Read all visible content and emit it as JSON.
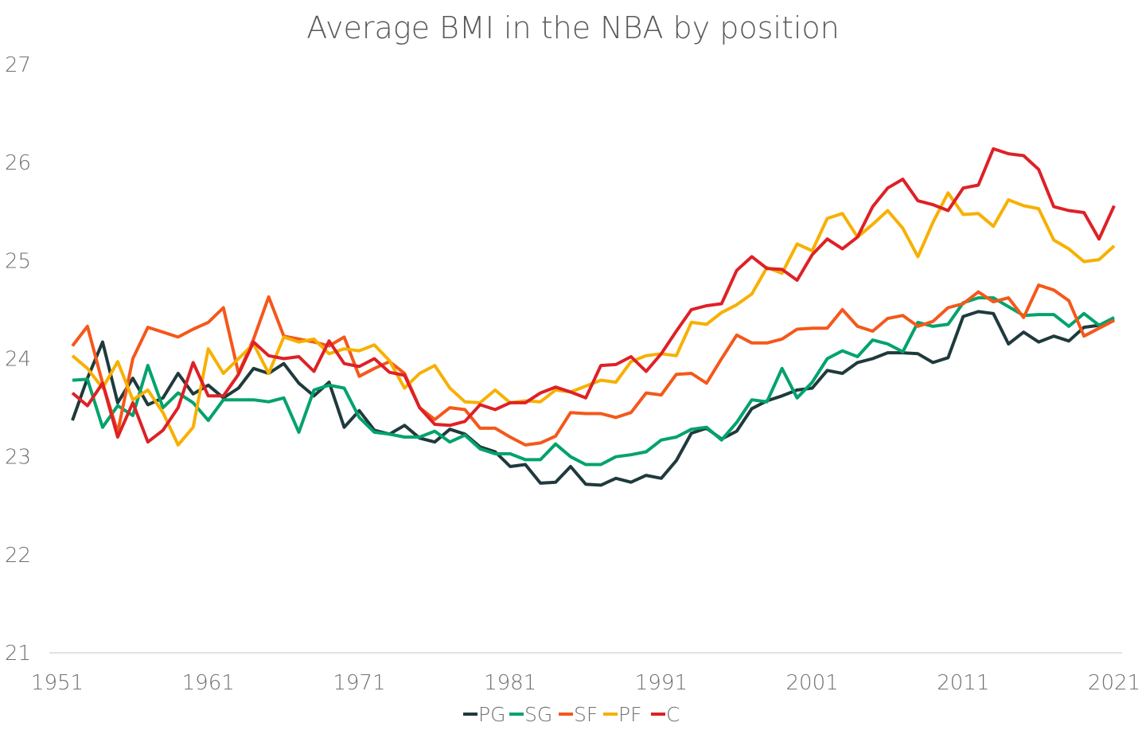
{
  "chart_data": {
    "type": "line",
    "title": "Average BMI in the NBA by position",
    "xlabel": "",
    "ylabel": "",
    "ylim": [
      21,
      27
    ],
    "xlim": [
      1951,
      2021
    ],
    "y_ticks": [
      "21",
      "22",
      "23",
      "24",
      "25",
      "26",
      "27"
    ],
    "x_ticks": [
      "1951",
      "1961",
      "1971",
      "1981",
      "1991",
      "2001",
      "2011",
      "2021"
    ],
    "grid": false,
    "legend_position": "bottom",
    "x": [
      1952,
      1953,
      1954,
      1955,
      1956,
      1957,
      1958,
      1959,
      1960,
      1961,
      1962,
      1963,
      1964,
      1965,
      1966,
      1967,
      1968,
      1969,
      1970,
      1971,
      1972,
      1973,
      1974,
      1975,
      1976,
      1977,
      1978,
      1979,
      1980,
      1981,
      1982,
      1983,
      1984,
      1985,
      1986,
      1987,
      1988,
      1989,
      1990,
      1991,
      1992,
      1993,
      1994,
      1995,
      1996,
      1997,
      1998,
      1999,
      2000,
      2001,
      2002,
      2003,
      2004,
      2005,
      2006,
      2007,
      2008,
      2009,
      2010,
      2011,
      2012,
      2013,
      2014,
      2015,
      2016,
      2017,
      2018,
      2019,
      2020,
      2021
    ],
    "series": [
      {
        "name": "PG",
        "color": "#1f3a3d",
        "values": [
          23.37,
          23.8,
          24.17,
          23.55,
          23.8,
          23.53,
          23.6,
          23.85,
          23.64,
          23.73,
          23.6,
          23.7,
          23.9,
          23.85,
          23.95,
          23.75,
          23.62,
          23.76,
          23.3,
          23.47,
          23.27,
          23.23,
          23.32,
          23.19,
          23.15,
          23.28,
          23.23,
          23.1,
          23.05,
          22.9,
          22.92,
          22.73,
          22.74,
          22.9,
          22.72,
          22.71,
          22.78,
          22.74,
          22.81,
          22.78,
          22.96,
          23.24,
          23.29,
          23.18,
          23.26,
          23.49,
          23.57,
          23.62,
          23.68,
          23.7,
          23.88,
          23.85,
          23.96,
          24.0,
          24.06,
          24.06,
          24.05,
          23.96,
          24.01,
          24.43,
          24.48,
          24.46,
          24.15,
          24.27,
          24.17,
          24.23,
          24.18,
          24.32,
          24.34,
          24.4
        ]
      },
      {
        "name": "SG",
        "color": "#00a36c",
        "values": [
          23.78,
          23.79,
          23.3,
          23.52,
          23.42,
          23.93,
          23.5,
          23.65,
          23.55,
          23.37,
          23.58,
          23.58,
          23.58,
          23.56,
          23.6,
          23.25,
          23.68,
          23.73,
          23.7,
          23.4,
          23.25,
          23.23,
          23.2,
          23.2,
          23.26,
          23.15,
          23.22,
          23.08,
          23.03,
          23.03,
          22.97,
          22.97,
          23.13,
          23.0,
          22.92,
          22.92,
          23.0,
          23.02,
          23.05,
          23.17,
          23.2,
          23.28,
          23.3,
          23.17,
          23.35,
          23.58,
          23.56,
          23.9,
          23.6,
          23.76,
          24.0,
          24.08,
          24.02,
          24.19,
          24.15,
          24.07,
          24.37,
          24.33,
          24.35,
          24.57,
          24.62,
          24.62,
          24.53,
          24.44,
          24.45,
          24.45,
          24.33,
          24.46,
          24.34,
          24.42
        ]
      },
      {
        "name": "SF",
        "color": "#f4581b",
        "values": [
          24.13,
          24.33,
          23.75,
          23.25,
          24.0,
          24.32,
          24.27,
          24.22,
          24.3,
          24.37,
          24.52,
          23.85,
          24.2,
          24.63,
          24.23,
          24.2,
          24.17,
          24.13,
          24.22,
          23.82,
          23.9,
          23.97,
          23.85,
          23.5,
          23.38,
          23.5,
          23.48,
          23.29,
          23.29,
          23.2,
          23.12,
          23.14,
          23.21,
          23.45,
          23.44,
          23.44,
          23.4,
          23.45,
          23.65,
          23.63,
          23.84,
          23.85,
          23.75,
          24.0,
          24.24,
          24.16,
          24.16,
          24.2,
          24.3,
          24.31,
          24.31,
          24.5,
          24.33,
          24.28,
          24.41,
          24.44,
          24.33,
          24.38,
          24.52,
          24.56,
          24.68,
          24.58,
          24.62,
          24.42,
          24.75,
          24.7,
          24.59,
          24.23,
          24.31,
          24.39
        ]
      },
      {
        "name": "PF",
        "color": "#f7b000",
        "values": [
          24.03,
          23.9,
          23.7,
          23.97,
          23.58,
          23.68,
          23.45,
          23.12,
          23.3,
          24.1,
          23.85,
          24.0,
          24.15,
          23.85,
          24.22,
          24.17,
          24.2,
          24.05,
          24.1,
          24.08,
          24.14,
          23.98,
          23.7,
          23.85,
          23.93,
          23.7,
          23.56,
          23.55,
          23.68,
          23.55,
          23.57,
          23.56,
          23.68,
          23.66,
          23.72,
          23.78,
          23.76,
          23.97,
          24.03,
          24.05,
          24.03,
          24.37,
          24.35,
          24.47,
          24.55,
          24.66,
          24.93,
          24.87,
          25.17,
          25.1,
          25.43,
          25.48,
          25.24,
          25.37,
          25.51,
          25.33,
          25.04,
          25.39,
          25.69,
          25.47,
          25.48,
          25.35,
          25.62,
          25.56,
          25.53,
          25.21,
          25.12,
          24.99,
          25.01,
          25.15
        ]
      },
      {
        "name": "C",
        "color": "#de2126",
        "values": [
          23.65,
          23.52,
          23.75,
          23.2,
          23.55,
          23.15,
          23.27,
          23.5,
          23.96,
          23.62,
          23.62,
          23.84,
          24.17,
          24.03,
          24.0,
          24.02,
          23.87,
          24.18,
          23.95,
          23.92,
          24.0,
          23.86,
          23.83,
          23.5,
          23.33,
          23.32,
          23.36,
          23.53,
          23.48,
          23.55,
          23.55,
          23.65,
          23.71,
          23.66,
          23.6,
          23.93,
          23.94,
          24.02,
          23.87,
          24.05,
          24.28,
          24.5,
          24.54,
          24.56,
          24.9,
          25.04,
          24.92,
          24.91,
          24.8,
          25.06,
          25.22,
          25.12,
          25.24,
          25.55,
          25.74,
          25.83,
          25.61,
          25.57,
          25.51,
          25.74,
          25.77,
          26.14,
          26.09,
          26.07,
          25.93,
          25.55,
          25.51,
          25.49,
          25.22,
          25.56
        ]
      }
    ]
  }
}
